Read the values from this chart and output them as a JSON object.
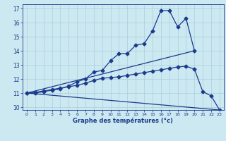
{
  "xlabel": "Graphe des températures (°c)",
  "background_color": "#cce8f0",
  "grid_color": "#aacfdf",
  "line_color": "#1a3a8c",
  "xlim": [
    -0.5,
    23.5
  ],
  "ylim": [
    9.8,
    17.3
  ],
  "yticks": [
    10,
    11,
    12,
    13,
    14,
    15,
    16,
    17
  ],
  "xticks": [
    0,
    1,
    2,
    3,
    4,
    5,
    6,
    7,
    8,
    9,
    10,
    11,
    12,
    13,
    14,
    15,
    16,
    17,
    18,
    19,
    20,
    21,
    22,
    23
  ],
  "line1_x": [
    0,
    1,
    2,
    3,
    4,
    5,
    6,
    7,
    8,
    9,
    10,
    11,
    12,
    13,
    14,
    15,
    16,
    17,
    18,
    19,
    20
  ],
  "line1_y": [
    11.0,
    11.0,
    11.1,
    11.2,
    11.3,
    11.5,
    11.8,
    12.0,
    12.5,
    12.6,
    13.3,
    13.8,
    13.8,
    14.4,
    14.5,
    15.4,
    16.85,
    16.85,
    15.7,
    16.3,
    14.0
  ],
  "line2_x": [
    0,
    20
  ],
  "line2_y": [
    11.0,
    14.0
  ],
  "line3_x": [
    0,
    1,
    2,
    3,
    4,
    5,
    6,
    7,
    8,
    9,
    10,
    11,
    12,
    13,
    14,
    15,
    16,
    17,
    18,
    19,
    20,
    21,
    22,
    23
  ],
  "line3_y": [
    11.0,
    11.05,
    11.15,
    11.25,
    11.35,
    11.45,
    11.55,
    11.7,
    11.9,
    12.05,
    12.1,
    12.15,
    12.25,
    12.35,
    12.45,
    12.55,
    12.65,
    12.75,
    12.85,
    12.9,
    12.7,
    11.1,
    10.8,
    9.8
  ],
  "line4_x": [
    0,
    23
  ],
  "line4_y": [
    11.0,
    9.8
  ]
}
